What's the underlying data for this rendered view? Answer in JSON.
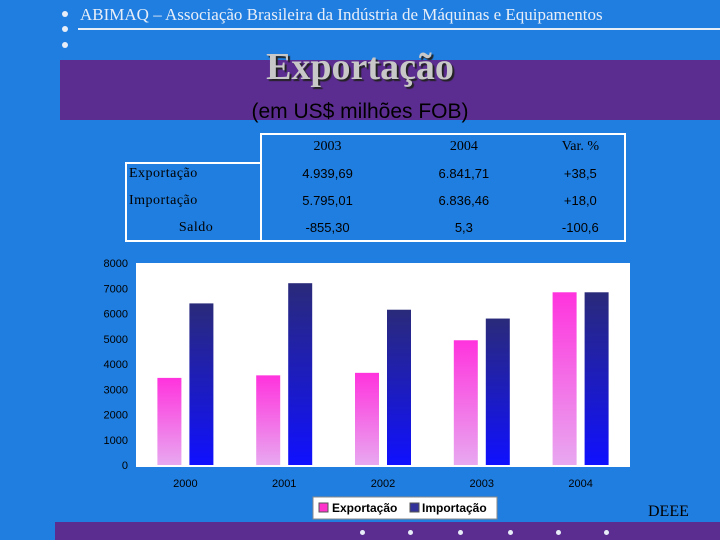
{
  "header": {
    "text": "ABIMAQ – Associação Brasileira da Indústria de Máquinas e Equipamentos"
  },
  "slide": {
    "title": "Exportação",
    "subtitle": "(em US$ milhões FOB)",
    "footer_label": "DEEE"
  },
  "colors": {
    "background": "#1f7ee0",
    "band": "#5c2d91",
    "exportacao": "#ff33cc",
    "importacao": "#333399"
  },
  "table": {
    "headers": [
      "",
      "2003",
      "2004",
      "Var. %"
    ],
    "rows": [
      [
        "Exportação",
        "4.939,69",
        "6.841,71",
        "+38,5"
      ],
      [
        "Importação",
        "5.795,01",
        "6.836,46",
        "+18,0"
      ],
      [
        "Saldo",
        "-855,30",
        "5,3",
        "-100,6"
      ]
    ]
  },
  "chart_data": {
    "type": "bar",
    "title": "",
    "xlabel": "",
    "ylabel": "",
    "categories": [
      "2000",
      "2001",
      "2002",
      "2003",
      "2004"
    ],
    "series": [
      {
        "name": "Exportação",
        "values": [
          3450,
          3550,
          3650,
          4940,
          6840
        ]
      },
      {
        "name": "Importação",
        "values": [
          6400,
          7200,
          6150,
          5800,
          6840
        ]
      }
    ],
    "ylim": [
      0,
      8000
    ],
    "yticks": [
      "0",
      "1000",
      "2000",
      "3000",
      "4000",
      "5000",
      "6000",
      "7000",
      "8000"
    ],
    "grid": false,
    "legend_position": "bottom"
  }
}
